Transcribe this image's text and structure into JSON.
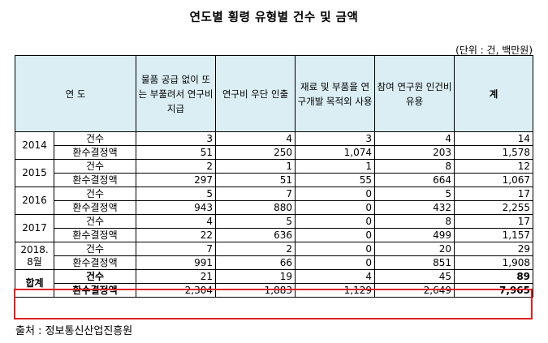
{
  "title": "연도별 횡령 유형별 건수 및 금액",
  "unit": "(단위 : 건, 백만원)",
  "headers": {
    "year": "연 도",
    "col1": "물품 공급 없이 또는 부풀려서 연구비 지급",
    "col2": "연구비 우단 인출",
    "col3": "재료 및 부품을 연구개발 목적외 사용",
    "col4": "참여 연구원 인건비 유용",
    "total": "계"
  },
  "rows": [
    {
      "year": "2014",
      "count_label": "건수",
      "count": [
        "3",
        "4",
        "3",
        "4",
        "14"
      ],
      "amount_label": "환수결정액",
      "amount": [
        "51",
        "250",
        "1,074",
        "203",
        "1,578"
      ]
    },
    {
      "year": "2015",
      "count_label": "건수",
      "count": [
        "2",
        "1",
        "1",
        "8",
        "12"
      ],
      "amount_label": "환수결정액",
      "amount": [
        "297",
        "51",
        "55",
        "664",
        "1,067"
      ]
    },
    {
      "year": "2016",
      "count_label": "건수",
      "count": [
        "5",
        "7",
        "0",
        "5",
        "17"
      ],
      "amount_label": "환수결정액",
      "amount": [
        "943",
        "880",
        "0",
        "432",
        "2,255"
      ]
    },
    {
      "year": "2017",
      "count_label": "건수",
      "count": [
        "4",
        "5",
        "0",
        "8",
        "17"
      ],
      "amount_label": "환수결정액",
      "amount": [
        "22",
        "636",
        "0",
        "499",
        "1,157"
      ]
    },
    {
      "year": "2018. 8월",
      "count_label": "건수",
      "count": [
        "7",
        "2",
        "0",
        "20",
        "29"
      ],
      "amount_label": "환수결정액",
      "amount": [
        "991",
        "66",
        "0",
        "851",
        "1,908"
      ]
    },
    {
      "year": "합계",
      "count_label": "건수",
      "count": [
        "21",
        "19",
        "4",
        "45",
        "89"
      ],
      "amount_label": "환수결정액",
      "amount": [
        "2,304",
        "1,883",
        "1,129",
        "2,649",
        "7,965"
      ]
    }
  ],
  "source": "출처 : 정보통신산업진흥원",
  "colors": {
    "header_bg": "#daeef3",
    "highlight_border": "#e02020"
  }
}
